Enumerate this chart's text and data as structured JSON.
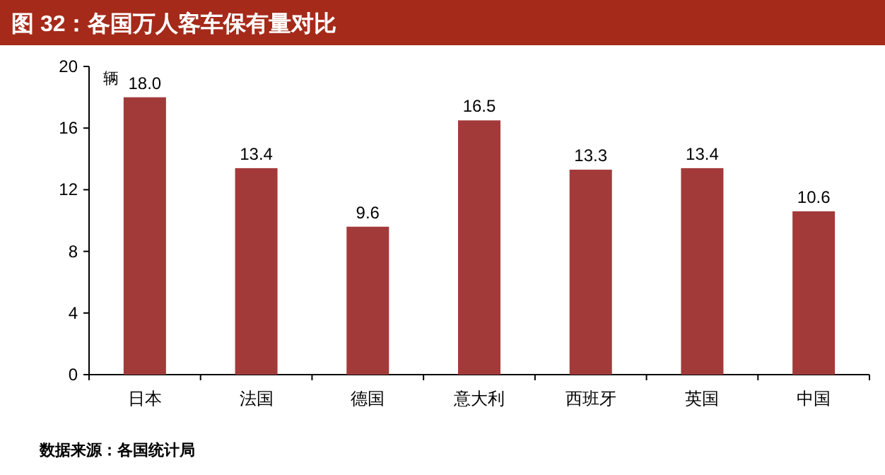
{
  "chart_data": {
    "type": "bar",
    "title": "图 32：各国万人客车保有量对比",
    "ylabel": "辆",
    "categories": [
      "日本",
      "法国",
      "德国",
      "意大利",
      "西班牙",
      "英国",
      "中国"
    ],
    "values": [
      18.0,
      13.4,
      9.6,
      16.5,
      13.3,
      13.4,
      10.6
    ],
    "value_labels": [
      "18.0",
      "13.4",
      "9.6",
      "16.5",
      "13.3",
      "13.4",
      "10.6"
    ],
    "color": "#a33a3a",
    "ylim": [
      0,
      20
    ],
    "yticks": [
      0,
      4,
      8,
      12,
      16,
      20
    ],
    "annotations": [
      "数据来源：各国统计局"
    ]
  }
}
